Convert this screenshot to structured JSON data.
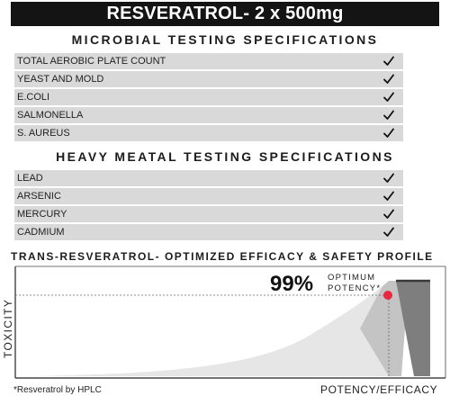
{
  "banner": {
    "title": "RESVERATROL- 2 x 500mg"
  },
  "microbial": {
    "title": "MICROBIAL TESTING SPECIFICATIONS",
    "rows": [
      {
        "label": "TOTAL AEROBIC PLATE COUNT",
        "passed": true
      },
      {
        "label": "YEAST AND MOLD",
        "passed": true
      },
      {
        "label": "E.COLI",
        "passed": true
      },
      {
        "label": "SALMONELLA",
        "passed": true
      },
      {
        "label": "S. AUREUS",
        "passed": true
      }
    ]
  },
  "heavy_metal": {
    "title": "HEAVY MEATAL TESTING SPECIFICATIONS",
    "rows": [
      {
        "label": "LEAD",
        "passed": true
      },
      {
        "label": "ARSENIC",
        "passed": true
      },
      {
        "label": "MERCURY",
        "passed": true
      },
      {
        "label": "CADMIUM",
        "passed": true
      }
    ]
  },
  "chart_data": {
    "type": "area",
    "title": "TRANS-RESVERATROL- OPTIMIZED EFFICACY & SAFETY PROFILE",
    "xlabel": "POTENCY/EFFICACY",
    "ylabel": "TOXICITY",
    "highlight": {
      "value": "99%",
      "label_line1": "OPTIMUM",
      "label_line2": "POTENCY*",
      "color": "#e8283c"
    },
    "footnote": "*Resveratrol by HPLC",
    "colors": {
      "light": "#e6e6e6",
      "mid": "#c4c4c4",
      "dark": "#7e7e7e",
      "cap": "#3a3a3a"
    }
  }
}
